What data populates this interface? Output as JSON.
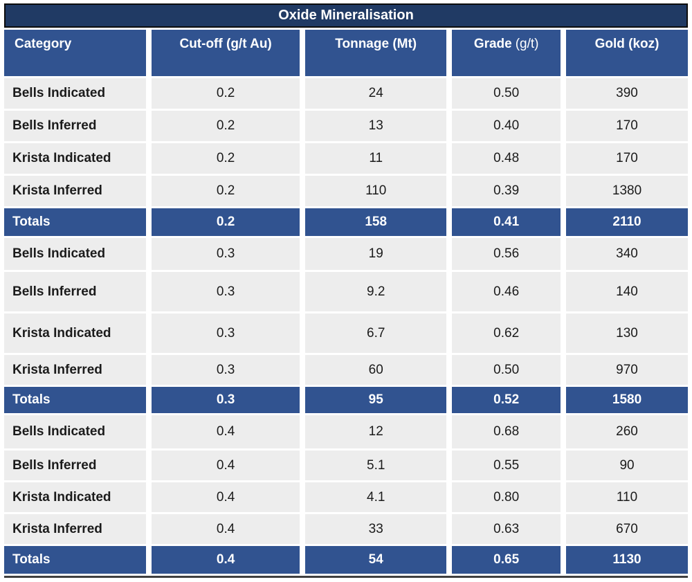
{
  "title": "Oxide Mineralisation",
  "table": {
    "columns": [
      {
        "bold": "Category",
        "unit": ""
      },
      {
        "bold": "Cut-off (g/t Au)",
        "unit": ""
      },
      {
        "bold": "Tonnage (Mt)",
        "unit": ""
      },
      {
        "bold": "Grade",
        "unit": "(g/t)"
      },
      {
        "bold": "Gold (koz)",
        "unit": ""
      }
    ],
    "rows": [
      {
        "type": "data",
        "cells": [
          "Bells Indicated",
          "0.2",
          "24",
          "0.50",
          "390"
        ]
      },
      {
        "type": "data",
        "cells": [
          "Bells Inferred",
          "0.2",
          "13",
          "0.40",
          "170"
        ]
      },
      {
        "type": "data",
        "cells": [
          "Krista Indicated",
          "0.2",
          "11",
          "0.48",
          "170"
        ]
      },
      {
        "type": "data",
        "cells": [
          "Krista Inferred",
          "0.2",
          "110",
          "0.39",
          "1380"
        ]
      },
      {
        "type": "totals",
        "cells": [
          "Totals",
          "0.2",
          "158",
          "0.41",
          "2110"
        ]
      },
      {
        "type": "data",
        "cells": [
          "Bells Indicated",
          "0.3",
          "19",
          "0.56",
          "340"
        ]
      },
      {
        "type": "data",
        "cells": [
          "Bells Inferred",
          "0.3",
          "9.2",
          "0.46",
          "140"
        ]
      },
      {
        "type": "data",
        "cells": [
          "Krista Indicated",
          "0.3",
          "6.7",
          "0.62",
          "130"
        ]
      },
      {
        "type": "data",
        "cells": [
          "Krista Inferred",
          "0.3",
          "60",
          "0.50",
          "970"
        ]
      },
      {
        "type": "totals",
        "cells": [
          "Totals",
          "0.3",
          "95",
          "0.52",
          "1580"
        ]
      },
      {
        "type": "data",
        "cells": [
          "Bells Indicated",
          "0.4",
          "12",
          "0.68",
          "260"
        ]
      },
      {
        "type": "data",
        "cells": [
          "Bells Inferred",
          "0.4",
          "5.1",
          "0.55",
          "90"
        ]
      },
      {
        "type": "data",
        "cells": [
          "Krista Indicated",
          "0.4",
          "4.1",
          "0.80",
          "110"
        ]
      },
      {
        "type": "data",
        "cells": [
          "Krista Inferred",
          "0.4",
          "33",
          "0.63",
          "670"
        ]
      },
      {
        "type": "totals",
        "cells": [
          "Totals",
          "0.4",
          "54",
          "0.65",
          "1130"
        ]
      }
    ]
  },
  "colors": {
    "title_bg": "#203A64",
    "header_bg": "#315390",
    "totals_bg": "#315390",
    "row_bg": "#EDEDED",
    "text_dark": "#1B1B1B",
    "text_light": "#FFFFFF"
  },
  "chart_data": {
    "type": "table",
    "title": "Oxide Mineralisation",
    "columns": [
      "Category",
      "Cut-off (g/t Au)",
      "Tonnage (Mt)",
      "Grade (g/t)",
      "Gold (koz)"
    ],
    "rows": [
      [
        "Bells Indicated",
        0.2,
        24,
        0.5,
        390
      ],
      [
        "Bells Inferred",
        0.2,
        13,
        0.4,
        170
      ],
      [
        "Krista Indicated",
        0.2,
        11,
        0.48,
        170
      ],
      [
        "Krista Inferred",
        0.2,
        110,
        0.39,
        1380
      ],
      [
        "Totals",
        0.2,
        158,
        0.41,
        2110
      ],
      [
        "Bells Indicated",
        0.3,
        19,
        0.56,
        340
      ],
      [
        "Bells Inferred",
        0.3,
        9.2,
        0.46,
        140
      ],
      [
        "Krista Indicated",
        0.3,
        6.7,
        0.62,
        130
      ],
      [
        "Krista Inferred",
        0.3,
        60,
        0.5,
        970
      ],
      [
        "Totals",
        0.3,
        95,
        0.52,
        1580
      ],
      [
        "Bells Indicated",
        0.4,
        12,
        0.68,
        260
      ],
      [
        "Bells Inferred",
        0.4,
        5.1,
        0.55,
        90
      ],
      [
        "Krista Indicated",
        0.4,
        4.1,
        0.8,
        110
      ],
      [
        "Krista Inferred",
        0.4,
        33,
        0.63,
        670
      ],
      [
        "Totals",
        0.4,
        54,
        0.65,
        1130
      ]
    ]
  }
}
